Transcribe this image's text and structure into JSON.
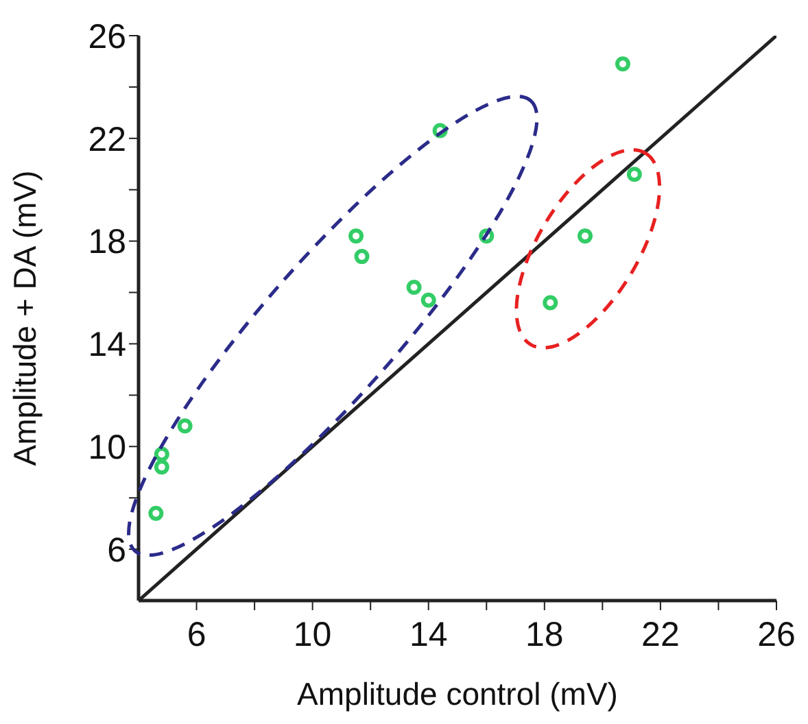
{
  "chart_data": {
    "type": "scatter",
    "xlabel": "Amplitude control (mV)",
    "ylabel": "Amplitude + DA  (mV)",
    "xlim": [
      4,
      26
    ],
    "ylim": [
      4,
      26
    ],
    "xticks": [
      6,
      {
        "value": 8,
        "label": null
      },
      10,
      {
        "value": 12,
        "label": null
      },
      14,
      {
        "value": 16,
        "label": null
      },
      18,
      {
        "value": 20,
        "label": null
      },
      22,
      {
        "value": 24,
        "label": null
      },
      26
    ],
    "yticks": [
      6,
      {
        "value": 8,
        "label": null
      },
      10,
      {
        "value": 12,
        "label": null
      },
      14,
      {
        "value": 16,
        "label": null
      },
      18,
      {
        "value": 20,
        "label": null
      },
      22,
      {
        "value": 24,
        "label": null
      },
      26
    ],
    "marker": "circle",
    "series": [
      {
        "color": "#33cc66",
        "x": [
          4.6,
          4.8,
          4.8,
          5.6,
          11.5,
          11.7,
          13.5,
          14.0,
          14.4,
          16.0,
          18.2,
          19.4,
          20.7,
          21.1
        ],
        "values": [
          7.4,
          9.2,
          9.7,
          10.8,
          18.2,
          17.4,
          16.2,
          15.7,
          22.3,
          18.2,
          15.6,
          18.2,
          24.9,
          20.6
        ]
      },
      {
        "type": "line",
        "color": "#222222",
        "marker": "none",
        "line_style": "solid",
        "x": [
          4,
          26
        ],
        "values": [
          4,
          26
        ]
      }
    ]
  }
}
